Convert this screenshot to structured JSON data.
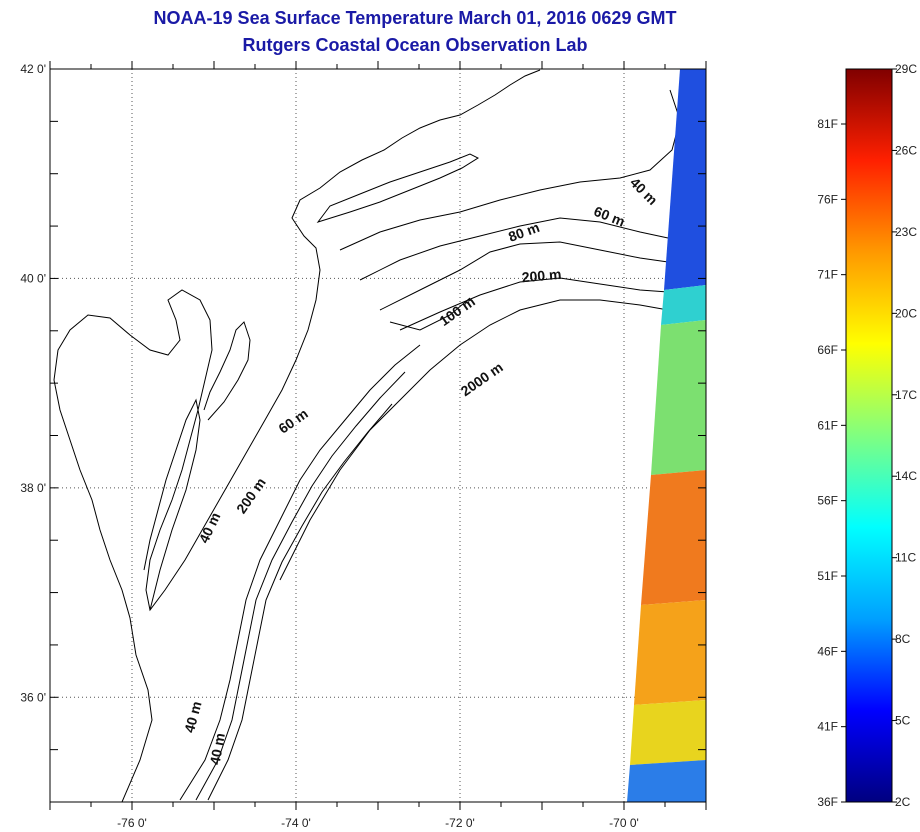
{
  "title_line1": "NOAA-19 Sea Surface Temperature March 01, 2016 0629 GMT",
  "title_line2": "Rutgers Coastal Ocean Observation Lab",
  "map": {
    "lon_range": [
      -77,
      -69
    ],
    "lat_range": [
      35,
      42
    ],
    "lat_ticks": [
      {
        "value": 42,
        "label": "42 0'"
      },
      {
        "value": 40,
        "label": "40 0'"
      },
      {
        "value": 38,
        "label": "38 0'"
      },
      {
        "value": 36,
        "label": "36 0'"
      }
    ],
    "lon_ticks": [
      {
        "value": -76,
        "label": "-76 0'"
      },
      {
        "value": -74,
        "label": "-74 0'"
      },
      {
        "value": -72,
        "label": "-72 0'"
      },
      {
        "value": -70,
        "label": "-70 0'"
      }
    ],
    "grid": "dotted",
    "contour_labels": [
      {
        "text": "40 m",
        "lon": -69.8,
        "lat": 40.8,
        "angle": 45
      },
      {
        "text": "60 m",
        "lon": -70.2,
        "lat": 40.55,
        "angle": 22
      },
      {
        "text": "80 m",
        "lon": -71.2,
        "lat": 40.4,
        "angle": -20
      },
      {
        "text": "200 m",
        "lon": -71.0,
        "lat": 39.98,
        "angle": -5
      },
      {
        "text": "100 m",
        "lon": -72.0,
        "lat": 39.65,
        "angle": -35
      },
      {
        "text": "2000 m",
        "lon": -71.7,
        "lat": 39.0,
        "angle": -35
      },
      {
        "text": "60 m",
        "lon": -74.0,
        "lat": 38.6,
        "angle": -35
      },
      {
        "text": "200 m",
        "lon": -74.5,
        "lat": 37.9,
        "angle": -55
      },
      {
        "text": "40 m",
        "lon": -75.0,
        "lat": 37.6,
        "angle": -65
      },
      {
        "text": "40 m",
        "lon": -75.2,
        "lat": 35.8,
        "angle": -75
      },
      {
        "text": "40 m",
        "lon": -74.9,
        "lat": 35.5,
        "angle": -80
      }
    ]
  },
  "colorbar": {
    "celsius_labels": [
      "29C",
      "26C",
      "23C",
      "20C",
      "17C",
      "14C",
      "11C",
      "8C",
      "5C",
      "2C"
    ],
    "fahrenheit_labels": [
      "81F",
      "76F",
      "71F",
      "66F",
      "61F",
      "56F",
      "51F",
      "46F",
      "41F",
      "36F"
    ],
    "colors": [
      "#000080",
      "#0000ff",
      "#00a0ff",
      "#00ffff",
      "#80ff80",
      "#ffff00",
      "#ff9900",
      "#ff2000",
      "#800000"
    ]
  }
}
